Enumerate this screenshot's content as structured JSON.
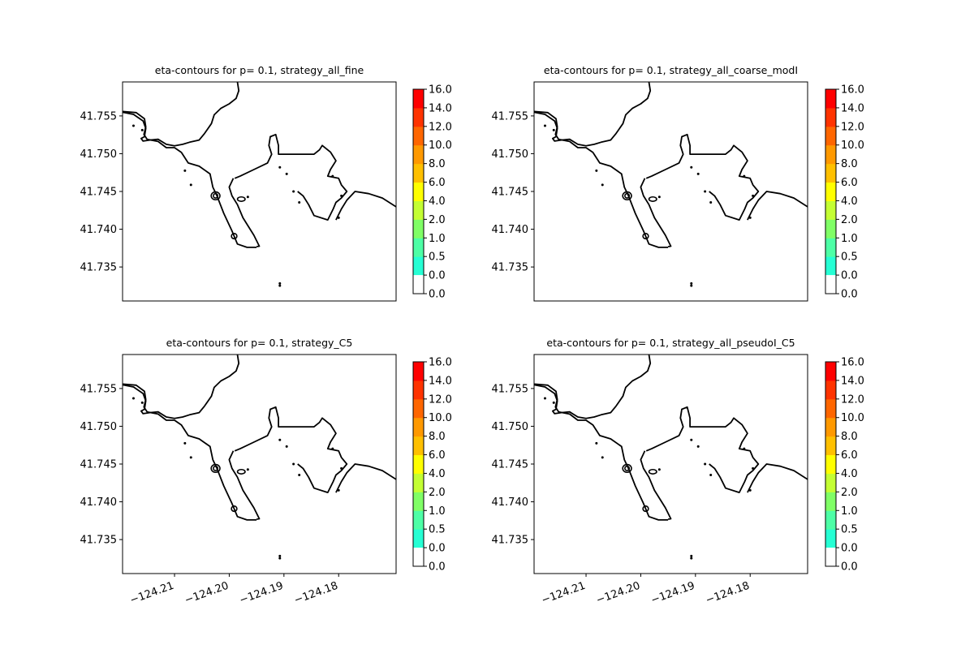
{
  "chart_data": [
    {
      "type": "contour",
      "title": "eta-contours for p= 0.1, strategy_all_fine",
      "xlabel": "",
      "ylabel": "",
      "xlim": [
        -124.2195,
        -124.1695
      ],
      "ylim": [
        41.7305,
        41.7595
      ],
      "xticks": [],
      "yticks": [
        41.735,
        41.74,
        41.745,
        41.75,
        41.755
      ],
      "yticklabels": [
        "41.735",
        "41.740",
        "41.745",
        "41.750",
        "41.755"
      ],
      "colorbar": {
        "levels": [
          "0.0",
          "0.0",
          "0.5",
          "1.0",
          "2.0",
          "4.0",
          "6.0",
          "8.0",
          "10.0",
          "12.0",
          "14.0",
          "16.0"
        ],
        "colors": [
          "#ffffff",
          "#00ffff",
          "#26ffd4",
          "#4dffa6",
          "#80ff66",
          "#c4ff33",
          "#ffff00",
          "#ffc000",
          "#ff9900",
          "#ff6600",
          "#ff3300",
          "#ff0000"
        ]
      },
      "grid": false
    },
    {
      "type": "contour",
      "title": "eta-contours for p= 0.1, strategy_all_coarse_modI",
      "xlabel": "",
      "ylabel": "",
      "xlim": [
        -124.2195,
        -124.1695
      ],
      "ylim": [
        41.7305,
        41.7595
      ],
      "xticks": [],
      "yticks": [
        41.735,
        41.74,
        41.745,
        41.75,
        41.755
      ],
      "yticklabels": [
        "41.735",
        "41.740",
        "41.745",
        "41.750",
        "41.755"
      ],
      "colorbar": {
        "levels": [
          "0.0",
          "0.0",
          "0.5",
          "1.0",
          "2.0",
          "4.0",
          "6.0",
          "8.0",
          "10.0",
          "12.0",
          "14.0",
          "16.0"
        ],
        "colors": [
          "#ffffff",
          "#00ffff",
          "#26ffd4",
          "#4dffa6",
          "#80ff66",
          "#c4ff33",
          "#ffff00",
          "#ffc000",
          "#ff9900",
          "#ff6600",
          "#ff3300",
          "#ff0000"
        ]
      },
      "grid": false
    },
    {
      "type": "contour",
      "title": "eta-contours for p= 0.1, strategy_C5",
      "xlabel": "",
      "ylabel": "",
      "xlim": [
        -124.2195,
        -124.1695
      ],
      "ylim": [
        41.7305,
        41.7595
      ],
      "xticks": [
        -124.21,
        -124.2,
        -124.19,
        -124.18
      ],
      "xticklabels": [
        "−124.21",
        "−124.20",
        "−124.19",
        "−124.18"
      ],
      "yticks": [
        41.735,
        41.74,
        41.745,
        41.75,
        41.755
      ],
      "yticklabels": [
        "41.735",
        "41.740",
        "41.745",
        "41.750",
        "41.755"
      ],
      "colorbar": {
        "levels": [
          "0.0",
          "0.0",
          "0.5",
          "1.0",
          "2.0",
          "4.0",
          "6.0",
          "8.0",
          "10.0",
          "12.0",
          "14.0",
          "16.0"
        ],
        "colors": [
          "#ffffff",
          "#00ffff",
          "#26ffd4",
          "#4dffa6",
          "#80ff66",
          "#c4ff33",
          "#ffff00",
          "#ffc000",
          "#ff9900",
          "#ff6600",
          "#ff3300",
          "#ff0000"
        ]
      },
      "grid": false
    },
    {
      "type": "contour",
      "title": "eta-contours for p= 0.1, strategy_all_pseudoI_C5",
      "xlabel": "",
      "ylabel": "",
      "xlim": [
        -124.2195,
        -124.1695
      ],
      "ylim": [
        41.7305,
        41.7595
      ],
      "xticks": [
        -124.21,
        -124.2,
        -124.19,
        -124.18
      ],
      "xticklabels": [
        "−124.21",
        "−124.20",
        "−124.19",
        "−124.18"
      ],
      "yticks": [
        41.735,
        41.74,
        41.745,
        41.75,
        41.755
      ],
      "yticklabels": [
        "41.735",
        "41.740",
        "41.745",
        "41.750",
        "41.755"
      ],
      "colorbar": {
        "levels": [
          "0.0",
          "0.0",
          "0.5",
          "1.0",
          "2.0",
          "4.0",
          "6.0",
          "8.0",
          "10.0",
          "12.0",
          "14.0",
          "16.0"
        ],
        "colors": [
          "#ffffff",
          "#00ffff",
          "#26ffd4",
          "#4dffa6",
          "#80ff66",
          "#c4ff33",
          "#ffff00",
          "#ffc000",
          "#ff9900",
          "#ff6600",
          "#ff3300",
          "#ff0000"
        ]
      },
      "grid": false
    }
  ]
}
